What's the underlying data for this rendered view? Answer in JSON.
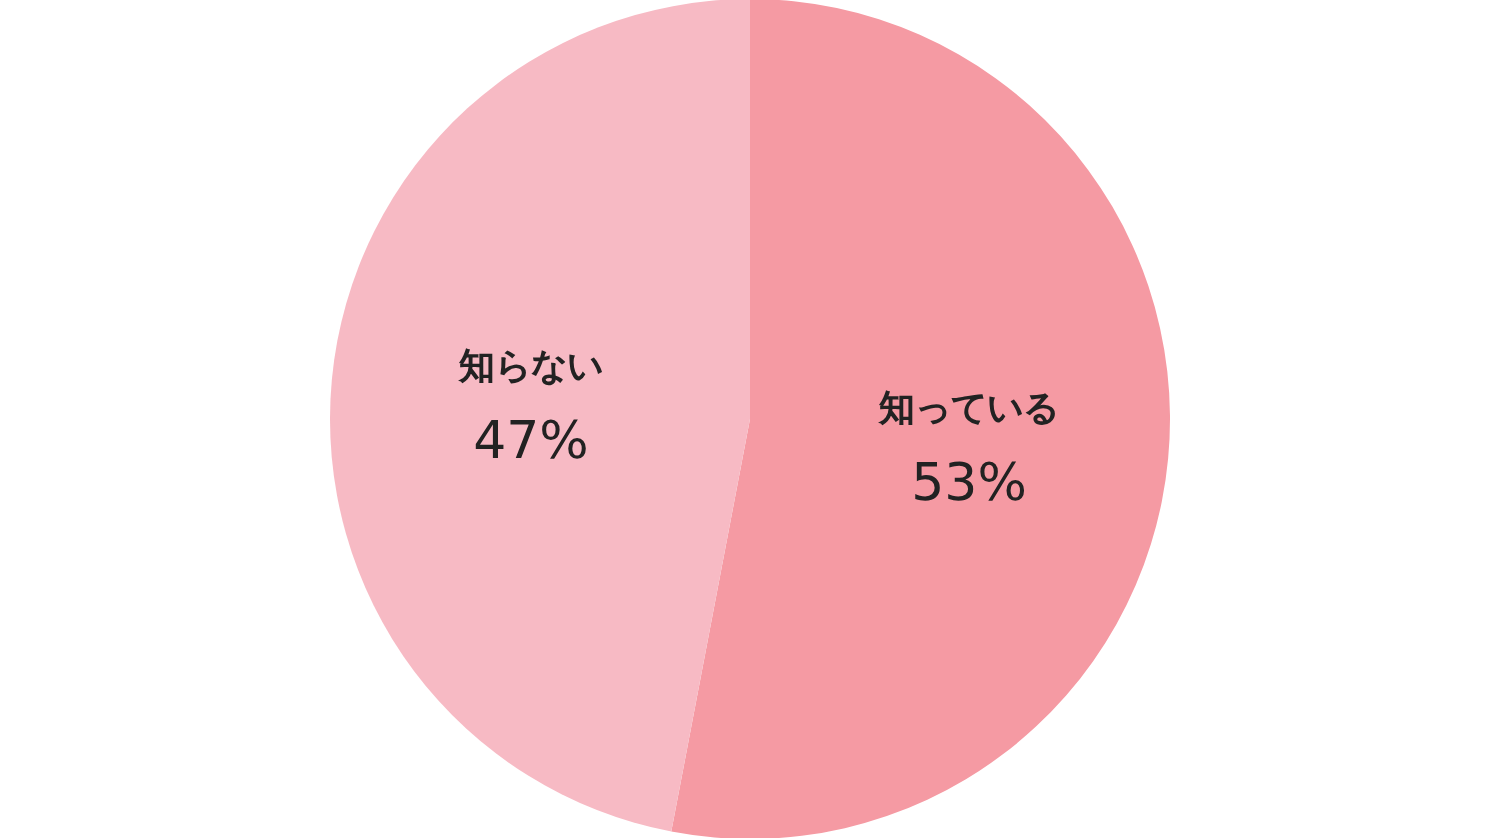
{
  "chart_data": {
    "type": "pie",
    "categories": [
      "知っている",
      "知らない"
    ],
    "values": [
      53,
      47
    ],
    "colors": [
      "#f59aa3",
      "#f7bac4"
    ],
    "value_labels": [
      "53%",
      "47%"
    ]
  }
}
